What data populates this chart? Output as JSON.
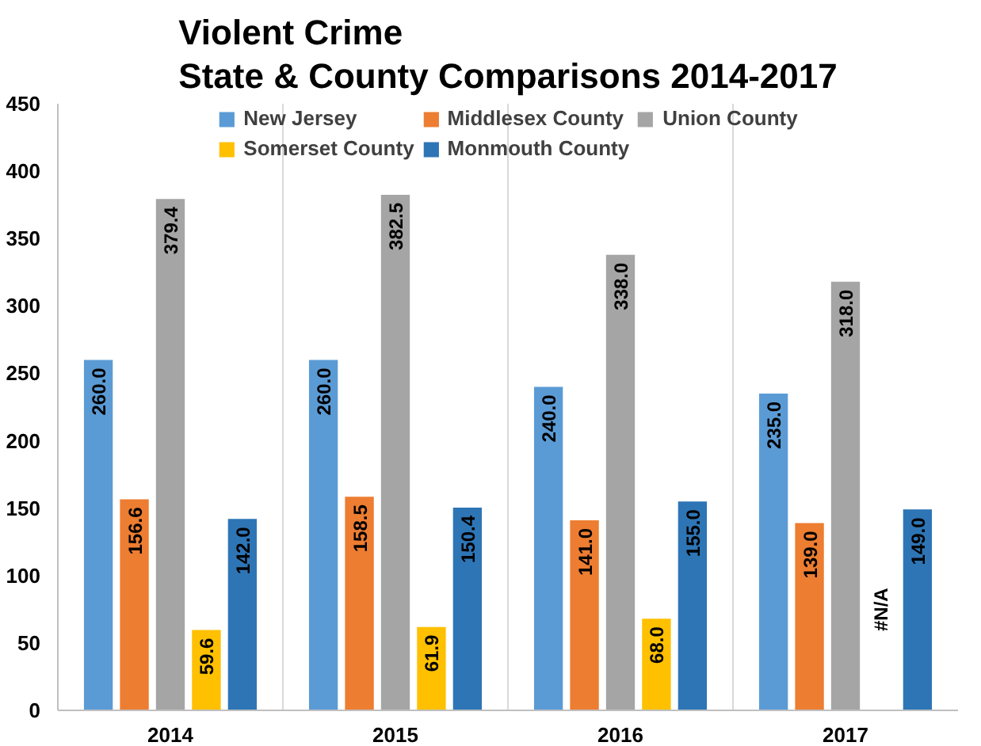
{
  "chart_data": {
    "type": "bar",
    "title": "Violent Crime\nState & County Comparisons 2014-2017",
    "categories": [
      "2014",
      "2015",
      "2016",
      "2017"
    ],
    "series": [
      {
        "name": "New Jersey",
        "color": "#5b9bd5",
        "values": [
          260.0,
          260.0,
          240.0,
          235.0
        ],
        "value_labels": [
          "260.0",
          "260.0",
          "240.0",
          "235.0"
        ]
      },
      {
        "name": "Middlesex County",
        "color": "#ed7d31",
        "values": [
          156.6,
          158.5,
          141.0,
          139.0
        ],
        "value_labels": [
          "156.6",
          "158.5",
          "141.0",
          "139.0"
        ]
      },
      {
        "name": "Union County",
        "color": "#a5a5a5",
        "values": [
          379.4,
          382.5,
          338.0,
          318.0
        ],
        "value_labels": [
          "379.4",
          "382.5",
          "338.0",
          "318.0"
        ]
      },
      {
        "name": "Somerset County",
        "color": "#ffc000",
        "values": [
          59.6,
          61.9,
          68.0,
          null
        ],
        "value_labels": [
          "59.6",
          "61.9",
          "68.0",
          "#N/A"
        ]
      },
      {
        "name": "Monmouth County",
        "color": "#2e75b6",
        "values": [
          142.0,
          150.4,
          155.0,
          149.0
        ],
        "value_labels": [
          "142.0",
          "150.4",
          "155.0",
          "149.0"
        ]
      }
    ],
    "ylim": [
      0,
      450
    ],
    "yticks": [
      0,
      50,
      100,
      150,
      200,
      250,
      300,
      350,
      400,
      450
    ],
    "grid": "x",
    "legend": "top"
  }
}
